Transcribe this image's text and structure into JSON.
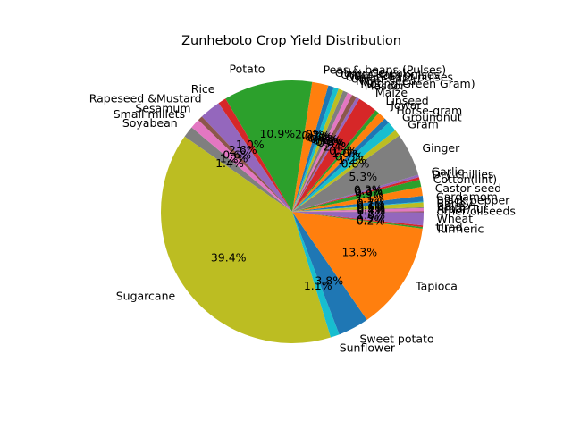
{
  "chart_data": {
    "type": "pie",
    "title": "Zunheboto Crop Yield Distribution",
    "start_angle_deg": 140,
    "direction": "counterclockwise",
    "percent_label_min": 0.1,
    "slices": [
      {
        "label": "Soyabean",
        "value": 1.4,
        "color": "#7f7f7f"
      },
      {
        "label": "Sugarcane",
        "value": 39.4,
        "color": "#bcbd22"
      },
      {
        "label": "Sunflower",
        "value": 1.1,
        "color": "#17becf"
      },
      {
        "label": "Sweet potato",
        "value": 3.8,
        "color": "#1f77b4"
      },
      {
        "label": "Tapioca",
        "value": 13.3,
        "color": "#ff7f0e"
      },
      {
        "label": "Turmeric",
        "value": 0.2,
        "color": "#2ca02c"
      },
      {
        "label": "Urad",
        "value": 0.2,
        "color": "#d62728"
      },
      {
        "label": "Wheat",
        "value": 1.6,
        "color": "#9467bd"
      },
      {
        "label": "other oilseeds",
        "value": 0.1,
        "color": "#8c564b"
      },
      {
        "label": "Arhar/Tur",
        "value": 0.4,
        "color": "#e377c2"
      },
      {
        "label": "Bajra",
        "value": 0.1,
        "color": "#7f7f7f"
      },
      {
        "label": "Barley",
        "value": 0.6,
        "color": "#bcbd22"
      },
      {
        "label": "Black pepper",
        "value": 0.1,
        "color": "#17becf"
      },
      {
        "label": "Cardamom",
        "value": 0.7,
        "color": "#1f77b4"
      },
      {
        "label": "Castor seed",
        "value": 1.1,
        "color": "#ff7f0e"
      },
      {
        "label": "Cotton(lint)",
        "value": 0.9,
        "color": "#2ca02c"
      },
      {
        "label": "Dry chillies",
        "value": 0.3,
        "color": "#d62728"
      },
      {
        "label": "Garlic",
        "value": 0.3,
        "color": "#9467bd"
      },
      {
        "label": "Ginger",
        "value": 5.3,
        "color": "#7f7f7f"
      },
      {
        "label": "Gram",
        "value": 0.8,
        "color": "#bcbd22"
      },
      {
        "label": "Groundnut",
        "value": 1.2,
        "color": "#17becf"
      },
      {
        "label": "Horse-gram",
        "value": 0.7,
        "color": "#1f77b4"
      },
      {
        "label": "Jowar",
        "value": 1.0,
        "color": "#ff7f0e"
      },
      {
        "label": "Linseed",
        "value": 0.5,
        "color": "#2ca02c"
      },
      {
        "label": "Maize",
        "value": 2.4,
        "color": "#d62728"
      },
      {
        "label": "Masoor",
        "value": 0.4,
        "color": "#9467bd"
      },
      {
        "label": "Moong(Green Gram)",
        "value": 0.6,
        "color": "#8c564b"
      },
      {
        "label": "Niger seed",
        "value": 0.6,
        "color": "#e377c2"
      },
      {
        "label": "Onion",
        "value": 0.6,
        "color": "#7f7f7f"
      },
      {
        "label": "Other Kharif pulses",
        "value": 0.6,
        "color": "#bcbd22"
      },
      {
        "label": "Other Rabi pulses",
        "value": 0.6,
        "color": "#17becf"
      },
      {
        "label": "Other Cereals",
        "value": 0.7,
        "color": "#1f77b4"
      },
      {
        "label": "Peas & beans (Pulses)",
        "value": 2.0,
        "color": "#ff7f0e"
      },
      {
        "label": "Potato",
        "value": 10.9,
        "color": "#2ca02c"
      },
      {
        "label": "Rice",
        "value": 1.0,
        "color": "#d62728"
      },
      {
        "label": "Rapeseed &Mustard",
        "value": 2.6,
        "color": "#9467bd"
      },
      {
        "label": "Sesamum",
        "value": 0.6,
        "color": "#8c564b"
      },
      {
        "label": "Small millets",
        "value": 1.2,
        "color": "#e377c2"
      }
    ]
  }
}
